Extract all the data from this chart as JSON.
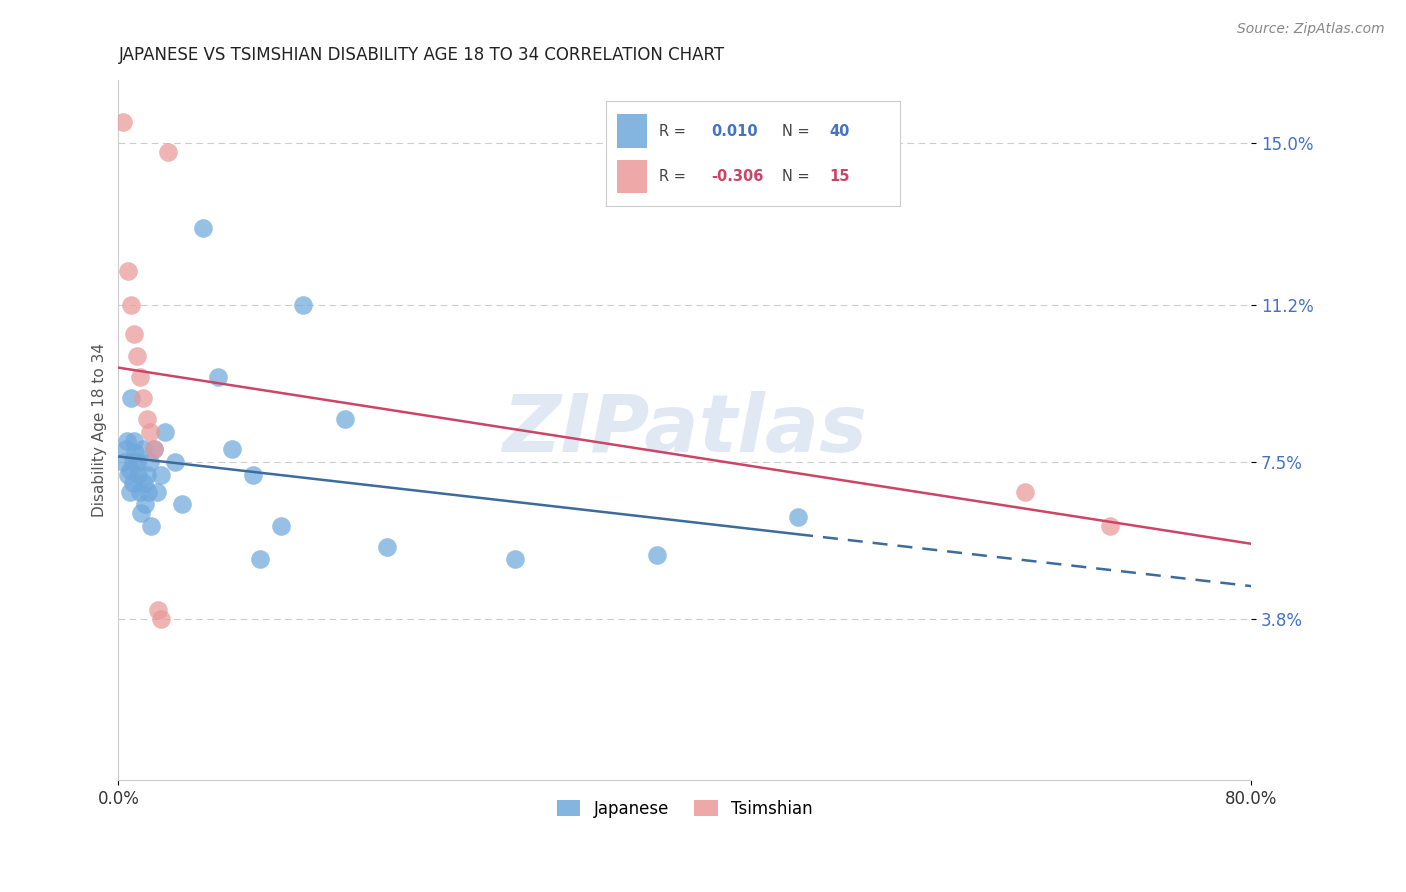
{
  "title": "JAPANESE VS TSIMSHIAN DISABILITY AGE 18 TO 34 CORRELATION CHART",
  "source": "Source: ZipAtlas.com",
  "ylabel": "Disability Age 18 to 34",
  "xlim": [
    0.0,
    0.8
  ],
  "ylim": [
    0.0,
    0.165
  ],
  "yticks": [
    0.038,
    0.075,
    0.112,
    0.15
  ],
  "ytick_labels": [
    "3.8%",
    "7.5%",
    "11.2%",
    "15.0%"
  ],
  "xticks": [
    0.0,
    0.8
  ],
  "xtick_labels": [
    "0.0%",
    "80.0%"
  ],
  "watermark": "ZIPatlas",
  "legend_japanese_r": "0.010",
  "legend_japanese_n": "40",
  "legend_tsimshian_r": "-0.306",
  "legend_tsimshian_n": "15",
  "japanese_color": "#6fa8dc",
  "tsimshian_color": "#ea9999",
  "japanese_line_color": "#3d6b9c",
  "tsimshian_line_color": "#cc4466",
  "japanese_x": [
    0.003,
    0.005,
    0.006,
    0.007,
    0.008,
    0.008,
    0.009,
    0.01,
    0.01,
    0.011,
    0.012,
    0.013,
    0.014,
    0.015,
    0.016,
    0.017,
    0.018,
    0.019,
    0.02,
    0.021,
    0.022,
    0.023,
    0.025,
    0.027,
    0.03,
    0.033,
    0.04,
    0.045,
    0.06,
    0.07,
    0.08,
    0.095,
    0.1,
    0.115,
    0.13,
    0.16,
    0.19,
    0.28,
    0.38,
    0.48
  ],
  "japanese_y": [
    0.075,
    0.078,
    0.08,
    0.072,
    0.073,
    0.068,
    0.09,
    0.075,
    0.07,
    0.08,
    0.077,
    0.075,
    0.072,
    0.068,
    0.063,
    0.078,
    0.07,
    0.065,
    0.072,
    0.068,
    0.075,
    0.06,
    0.078,
    0.068,
    0.072,
    0.082,
    0.075,
    0.065,
    0.13,
    0.095,
    0.078,
    0.072,
    0.052,
    0.06,
    0.112,
    0.085,
    0.055,
    0.052,
    0.053,
    0.062
  ],
  "tsimshian_x": [
    0.003,
    0.007,
    0.009,
    0.011,
    0.013,
    0.015,
    0.017,
    0.02,
    0.022,
    0.025,
    0.028,
    0.03,
    0.035,
    0.64,
    0.7
  ],
  "tsimshian_y": [
    0.155,
    0.12,
    0.112,
    0.105,
    0.1,
    0.095,
    0.09,
    0.085,
    0.082,
    0.078,
    0.04,
    0.038,
    0.148,
    0.068,
    0.06
  ],
  "title_fontsize": 12,
  "source_fontsize": 10,
  "label_fontsize": 11,
  "tick_fontsize": 12,
  "background_color": "#ffffff",
  "grid_color": "#cccccc",
  "grid_linestyle": "--",
  "blue_r": 0.01,
  "blue_n": 40,
  "pink_r": -0.306,
  "pink_n": 15
}
